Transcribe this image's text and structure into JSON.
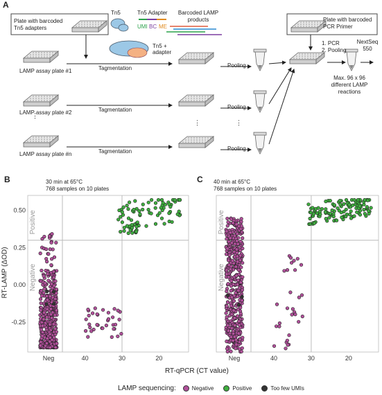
{
  "panel_a": {
    "letter": "A",
    "box_tn5": "Plate with barcoded Tn5 adapters",
    "tn5_label": "Tn5",
    "tn5_adapter_label": "Tn5 Adapter",
    "umi": "UMI",
    "bc": "BC",
    "me": "ME",
    "barcoded_products": "Barcoded LAMP products",
    "tn5_plus_adapter": "Tn5 + adapter",
    "box_pcr": "Plate with barcoded PCR Primer",
    "step1": "1.  PCR",
    "step2": "2.  Pooling",
    "nextseq": "NextSeq 550",
    "max_reactions": "Max. 96 x 96 different LAMP reactions",
    "plates": [
      "LAMP assay plate #1",
      "LAMP assay plate #2",
      "LAMP assay plate #n"
    ],
    "tagmentation": "Tagmentation",
    "pooling": "Pooling"
  },
  "colors": {
    "negative": "#b0509a",
    "positive": "#3fae3f",
    "too_few": "#333333"
  },
  "legend": {
    "title": "LAMP sequencing:",
    "negative": "Negative",
    "positive": "Positive",
    "too_few": "Too few UMIs"
  },
  "chart_data": [
    {
      "type": "scatter",
      "panel": "B",
      "title": "30 min at 65°C",
      "subtitle": "768 samples on 10 plates",
      "ylabel": "RT-LAMP (ΔOD)",
      "xlabel": "RT-qPCR (CT value)",
      "x_ticks": [
        "Neg",
        "40",
        "30",
        "20"
      ],
      "y_ticks": [
        "0.50",
        "0.25",
        "0.00",
        "-0.25"
      ],
      "ylim": [
        -0.45,
        0.6
      ],
      "threshold_y": 0.3,
      "threshold_ct": 30,
      "region_labels": [
        "Positive",
        "Negative"
      ],
      "series": [
        {
          "name": "Negative",
          "cluster": "Neg",
          "approx_count": 430,
          "y_range": [
            -0.42,
            0.1
          ]
        },
        {
          "name": "Negative",
          "cluster": "CT 40-30",
          "approx_count": 35,
          "y_range": [
            -0.35,
            -0.15
          ]
        },
        {
          "name": "Positive",
          "cluster": "CT 30-15",
          "approx_count": 90,
          "y_range": [
            0.33,
            0.55
          ]
        },
        {
          "name": "Too few UMIs",
          "cluster": "Neg",
          "approx_count": 4,
          "y_range": [
            -0.15,
            0.0
          ]
        }
      ]
    },
    {
      "type": "scatter",
      "panel": "C",
      "title": "40 min at 65°C",
      "subtitle": "768 samples on 10 plates",
      "x_ticks": [
        "Neg",
        "40",
        "30",
        "20"
      ],
      "threshold_y": 0.3,
      "threshold_ct": 30,
      "region_labels": [
        "Positive",
        "Negative"
      ],
      "series": [
        {
          "name": "Negative",
          "cluster": "Neg",
          "approx_count": 450,
          "y_range": [
            -0.45,
            0.45
          ]
        },
        {
          "name": "Negative",
          "cluster": "CT 40-30",
          "approx_count": 30,
          "y_range": [
            -0.45,
            0.2
          ]
        },
        {
          "name": "Positive",
          "cluster": "CT 30-15",
          "approx_count": 120,
          "y_range": [
            0.4,
            0.55
          ]
        },
        {
          "name": "Too few UMIs",
          "cluster": "Neg",
          "approx_count": 3,
          "y_range": [
            -0.15,
            0.0
          ]
        }
      ]
    }
  ]
}
